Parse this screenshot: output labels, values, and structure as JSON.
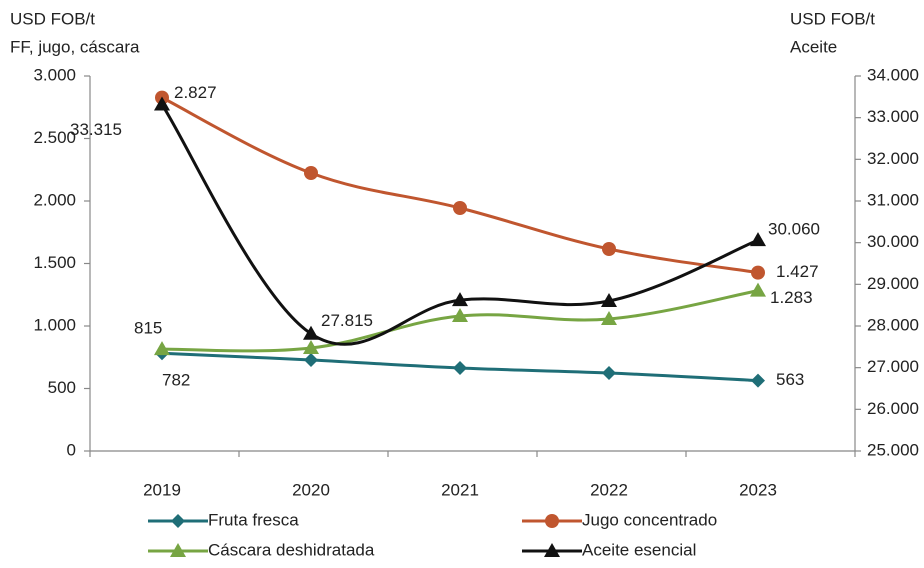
{
  "chart_data": {
    "type": "line",
    "y_label": [
      "USD FOB/t",
      "FF, jugo, cáscara"
    ],
    "y2_label": [
      "USD FOB/t",
      "Aceite"
    ],
    "categories": [
      "2019",
      "2020",
      "2021",
      "2022",
      "2023"
    ],
    "ylim": [
      0,
      3000
    ],
    "yticks": [
      0,
      500,
      {
        "value": 1000,
        "label": "1.000"
      },
      {
        "value": 1500,
        "label": "1.500"
      },
      {
        "value": 2000,
        "label": "2.000"
      },
      {
        "value": 2500,
        "label": "2.500"
      },
      {
        "value": 3000,
        "label": "3.000"
      }
    ],
    "y2lim": [
      25000,
      34000
    ],
    "y2ticks": [
      {
        "value": 25000,
        "label": "25.000"
      },
      {
        "value": 26000,
        "label": "26.000"
      },
      {
        "value": 27000,
        "label": "27.000"
      },
      {
        "value": 28000,
        "label": "28.000"
      },
      {
        "value": 29000,
        "label": "29.000"
      },
      {
        "value": 30000,
        "label": "30.000"
      },
      {
        "value": 31000,
        "label": "31.000"
      },
      {
        "value": 32000,
        "label": "32.000"
      },
      {
        "value": 33000,
        "label": "33.000"
      },
      {
        "value": 34000,
        "label": "34.000"
      }
    ],
    "legend": "bottom",
    "series": [
      {
        "name": "Fruta fresca",
        "color": "#1f6e77",
        "marker": "diamond",
        "values": [
          782,
          728,
          664,
          624,
          563
        ],
        "value_labels": [
          "782",
          null,
          null,
          null,
          "563"
        ]
      },
      {
        "name": "Jugo concentrado",
        "color": "#c0562f",
        "marker": "circle",
        "values": [
          2827,
          2224,
          1944,
          1616,
          1427
        ],
        "value_labels": [
          "2.827",
          null,
          null,
          null,
          "1.427"
        ]
      },
      {
        "name": "Cáscara deshidratada",
        "color": "#77a543",
        "marker": "triangle",
        "values": [
          815,
          824,
          1080,
          1056,
          1283
        ],
        "value_labels": [
          "815",
          null,
          null,
          null,
          "1.283"
        ]
      },
      {
        "name": "Aceite esencial",
        "color": "#111111",
        "marker": "triangle",
        "axis": "y2",
        "values": [
          33315,
          27815,
          28620,
          28600,
          30060
        ],
        "value_labels": [
          "33.315",
          "27.815",
          null,
          null,
          "30.060"
        ]
      }
    ]
  }
}
